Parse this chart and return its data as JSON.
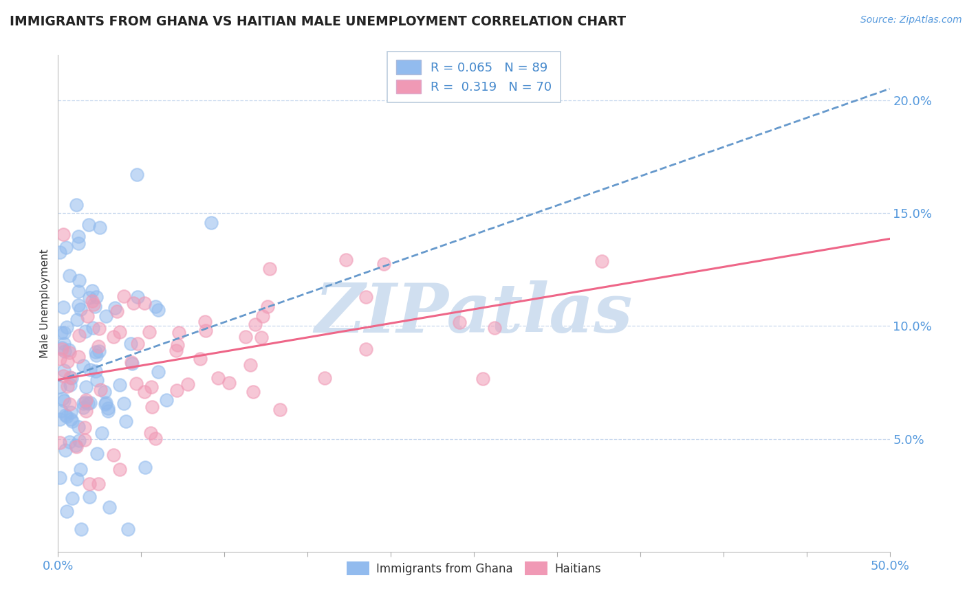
{
  "title": "IMMIGRANTS FROM GHANA VS HAITIAN MALE UNEMPLOYMENT CORRELATION CHART",
  "source_text": "Source: ZipAtlas.com",
  "ylabel": "Male Unemployment",
  "xlim": [
    0.0,
    0.5
  ],
  "ylim": [
    0.0,
    0.22
  ],
  "yticks": [
    0.05,
    0.1,
    0.15,
    0.2
  ],
  "ytick_labels": [
    "5.0%",
    "10.0%",
    "15.0%",
    "20.0%"
  ],
  "xtick_positions": [
    0.0,
    0.05,
    0.1,
    0.15,
    0.2,
    0.25,
    0.3,
    0.35,
    0.4,
    0.45,
    0.5
  ],
  "xtick_labels": [
    "0.0%",
    "",
    "",
    "",
    "",
    "",
    "",
    "",
    "",
    "",
    "50.0%"
  ],
  "ghana_R": 0.065,
  "ghana_N": 89,
  "haiti_R": 0.319,
  "haiti_N": 70,
  "ghana_color": "#92bbee",
  "haiti_color": "#f099b5",
  "trend_blue": "#6699cc",
  "trend_pink": "#ee6688",
  "watermark_text": "ZIPatlas",
  "watermark_color": "#c8d8f0",
  "background_color": "#ffffff",
  "grid_color": "#c8d8ee",
  "title_color": "#222222",
  "axis_label_color": "#333333",
  "tick_color": "#5599dd",
  "legend_text_color": "#4488cc"
}
